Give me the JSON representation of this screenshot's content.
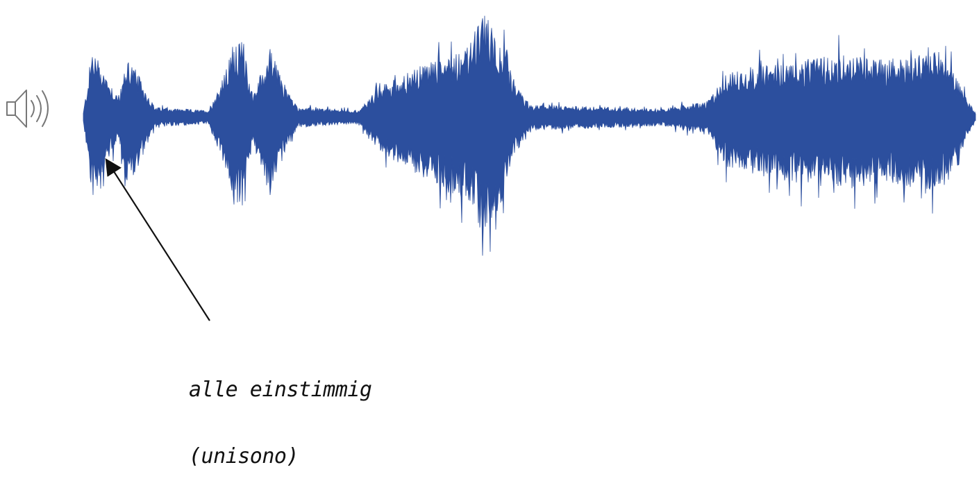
{
  "annotation": {
    "line1": "alle einstimmig",
    "line2": "(unisono)"
  },
  "icons": {
    "speaker": "speaker-icon"
  },
  "colors": {
    "waveform": "#2c4f9e",
    "arrow": "#111111",
    "icon": "#777777"
  },
  "waveform": {
    "envelope": [
      [
        0.0,
        0.05
      ],
      [
        0.01,
        0.9
      ],
      [
        0.03,
        0.45
      ],
      [
        0.04,
        0.25
      ],
      [
        0.05,
        0.8
      ],
      [
        0.07,
        0.35
      ],
      [
        0.08,
        0.12
      ],
      [
        0.14,
        0.08
      ],
      [
        0.16,
        0.6
      ],
      [
        0.17,
        1.05
      ],
      [
        0.18,
        0.85
      ],
      [
        0.19,
        0.3
      ],
      [
        0.21,
        0.9
      ],
      [
        0.22,
        0.55
      ],
      [
        0.24,
        0.12
      ],
      [
        0.31,
        0.08
      ],
      [
        0.32,
        0.25
      ],
      [
        0.34,
        0.45
      ],
      [
        0.37,
        0.6
      ],
      [
        0.4,
        0.8
      ],
      [
        0.43,
        0.9
      ],
      [
        0.45,
        1.35
      ],
      [
        0.47,
        0.9
      ],
      [
        0.48,
        0.5
      ],
      [
        0.5,
        0.15
      ],
      [
        0.6,
        0.12
      ],
      [
        0.65,
        0.1
      ],
      [
        0.7,
        0.2
      ],
      [
        0.72,
        0.55
      ],
      [
        0.75,
        0.65
      ],
      [
        0.8,
        0.72
      ],
      [
        0.85,
        0.8
      ],
      [
        0.9,
        0.75
      ],
      [
        0.94,
        0.8
      ],
      [
        0.96,
        0.85
      ],
      [
        0.975,
        0.6
      ],
      [
        0.99,
        0.25
      ],
      [
        1.0,
        0.05
      ]
    ]
  }
}
